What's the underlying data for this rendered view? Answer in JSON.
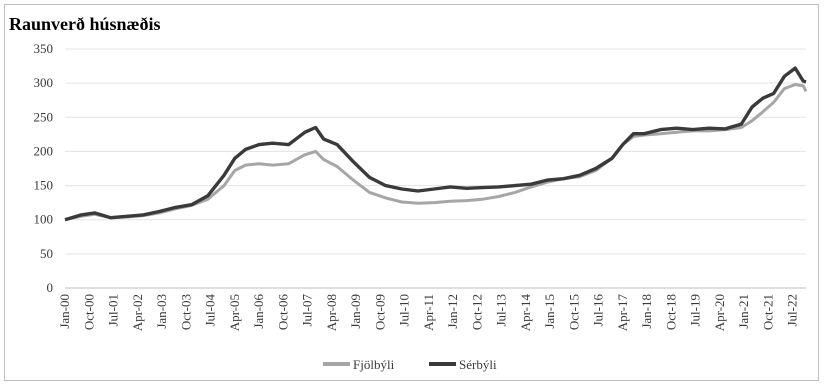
{
  "chart_data": {
    "type": "line",
    "title": "Raunverð húsnæðis",
    "xlabel": "",
    "ylabel": "",
    "ylim": [
      0,
      350
    ],
    "y_ticks": [
      0,
      50,
      100,
      150,
      200,
      250,
      300,
      350
    ],
    "x_tick_labels": [
      "Jan-00",
      "Oct-00",
      "Jul-01",
      "Apr-02",
      "Jan-03",
      "Oct-03",
      "Jul-04",
      "Apr-05",
      "Jan-06",
      "Oct-06",
      "Jul-07",
      "Apr-08",
      "Jan-09",
      "Oct-09",
      "Jul-10",
      "Apr-11",
      "Jan-12",
      "Oct-12",
      "Jul-13",
      "Apr-14",
      "Jan-15",
      "Oct-15",
      "Jul-16",
      "Apr-17",
      "Jan-18",
      "Oct-18",
      "Jul-19",
      "Apr-20",
      "Jan-21",
      "Oct-21",
      "Jul-22"
    ],
    "x_range": [
      "2000-01",
      "2022-12"
    ],
    "grid": "horizontal",
    "legend_position": "bottom",
    "series": [
      {
        "name": "Fjölbýli",
        "color": "#a6a6a6",
        "points": [
          [
            "2000-01",
            100
          ],
          [
            "2000-07",
            105
          ],
          [
            "2000-12",
            108
          ],
          [
            "2001-06",
            103
          ],
          [
            "2001-12",
            104
          ],
          [
            "2002-06",
            106
          ],
          [
            "2002-12",
            110
          ],
          [
            "2003-06",
            116
          ],
          [
            "2003-12",
            121
          ],
          [
            "2004-06",
            130
          ],
          [
            "2004-12",
            150
          ],
          [
            "2005-04",
            172
          ],
          [
            "2005-08",
            180
          ],
          [
            "2006-01",
            182
          ],
          [
            "2006-06",
            180
          ],
          [
            "2006-12",
            182
          ],
          [
            "2007-06",
            195
          ],
          [
            "2007-10",
            200
          ],
          [
            "2008-01",
            188
          ],
          [
            "2008-06",
            178
          ],
          [
            "2008-12",
            158
          ],
          [
            "2009-06",
            140
          ],
          [
            "2009-12",
            132
          ],
          [
            "2010-06",
            126
          ],
          [
            "2010-12",
            124
          ],
          [
            "2011-06",
            125
          ],
          [
            "2011-12",
            127
          ],
          [
            "2012-06",
            128
          ],
          [
            "2012-12",
            130
          ],
          [
            "2013-06",
            134
          ],
          [
            "2013-12",
            140
          ],
          [
            "2014-06",
            148
          ],
          [
            "2014-12",
            155
          ],
          [
            "2015-06",
            160
          ],
          [
            "2015-12",
            163
          ],
          [
            "2016-06",
            172
          ],
          [
            "2016-12",
            190
          ],
          [
            "2017-04",
            210
          ],
          [
            "2017-08",
            222
          ],
          [
            "2017-12",
            224
          ],
          [
            "2018-06",
            226
          ],
          [
            "2018-12",
            228
          ],
          [
            "2019-06",
            230
          ],
          [
            "2019-12",
            230
          ],
          [
            "2020-06",
            232
          ],
          [
            "2020-12",
            235
          ],
          [
            "2021-04",
            245
          ],
          [
            "2021-08",
            258
          ],
          [
            "2021-12",
            272
          ],
          [
            "2022-04",
            292
          ],
          [
            "2022-08",
            298
          ],
          [
            "2022-11",
            296
          ],
          [
            "2022-12",
            288
          ]
        ]
      },
      {
        "name": "Sérbýli",
        "color": "#3a3a3a",
        "points": [
          [
            "2000-01",
            100
          ],
          [
            "2000-07",
            107
          ],
          [
            "2000-12",
            110
          ],
          [
            "2001-06",
            103
          ],
          [
            "2001-12",
            105
          ],
          [
            "2002-06",
            107
          ],
          [
            "2002-12",
            112
          ],
          [
            "2003-06",
            118
          ],
          [
            "2003-12",
            122
          ],
          [
            "2004-06",
            135
          ],
          [
            "2004-12",
            165
          ],
          [
            "2005-04",
            190
          ],
          [
            "2005-08",
            203
          ],
          [
            "2006-01",
            210
          ],
          [
            "2006-06",
            212
          ],
          [
            "2006-12",
            210
          ],
          [
            "2007-06",
            228
          ],
          [
            "2007-10",
            235
          ],
          [
            "2008-01",
            218
          ],
          [
            "2008-06",
            210
          ],
          [
            "2008-12",
            185
          ],
          [
            "2009-06",
            162
          ],
          [
            "2009-12",
            150
          ],
          [
            "2010-06",
            145
          ],
          [
            "2010-12",
            142
          ],
          [
            "2011-06",
            145
          ],
          [
            "2011-12",
            148
          ],
          [
            "2012-06",
            146
          ],
          [
            "2012-12",
            147
          ],
          [
            "2013-06",
            148
          ],
          [
            "2013-12",
            150
          ],
          [
            "2014-06",
            152
          ],
          [
            "2014-12",
            158
          ],
          [
            "2015-06",
            160
          ],
          [
            "2015-12",
            165
          ],
          [
            "2016-06",
            175
          ],
          [
            "2016-12",
            190
          ],
          [
            "2017-04",
            210
          ],
          [
            "2017-08",
            226
          ],
          [
            "2017-12",
            226
          ],
          [
            "2018-06",
            232
          ],
          [
            "2018-12",
            234
          ],
          [
            "2019-06",
            232
          ],
          [
            "2019-12",
            234
          ],
          [
            "2020-06",
            233
          ],
          [
            "2020-12",
            240
          ],
          [
            "2021-04",
            265
          ],
          [
            "2021-08",
            278
          ],
          [
            "2021-12",
            285
          ],
          [
            "2022-04",
            310
          ],
          [
            "2022-08",
            322
          ],
          [
            "2022-11",
            303
          ],
          [
            "2022-12",
            302
          ]
        ]
      }
    ]
  }
}
